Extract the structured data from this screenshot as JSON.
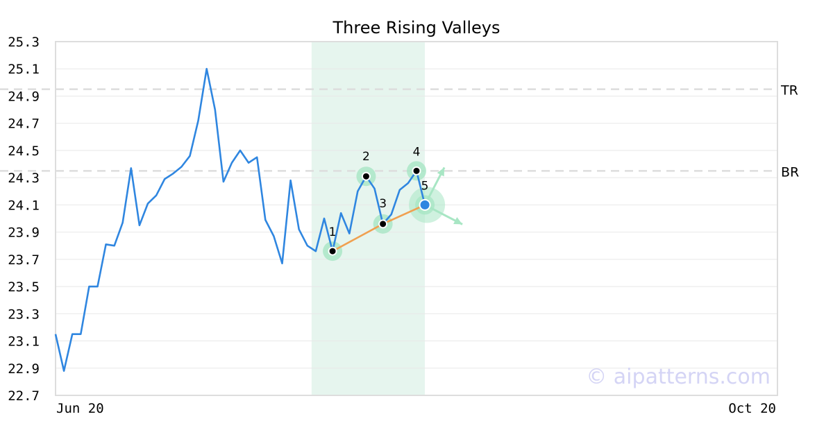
{
  "chart_data": {
    "type": "line",
    "title": "Three Rising Valleys",
    "watermark": "© aipatterns.com",
    "x_axis": {
      "start_label": "Jun 20",
      "end_label": "Oct 20"
    },
    "ylim": [
      22.7,
      25.3
    ],
    "y_ticks": [
      "22.7",
      "22.9",
      "23.1",
      "23.3",
      "23.5",
      "23.7",
      "23.9",
      "24.1",
      "24.3",
      "24.5",
      "24.7",
      "24.9",
      "25.1",
      "25.3"
    ],
    "grid": true,
    "series": [
      {
        "values": [
          23.15,
          22.88,
          23.15,
          23.15,
          23.5,
          23.5,
          23.81,
          23.8,
          23.97,
          24.37,
          23.95,
          24.11,
          24.17,
          24.29,
          24.33,
          24.38,
          24.46,
          24.72,
          25.1,
          24.8,
          24.27,
          24.41,
          24.5,
          24.41,
          24.45,
          23.99,
          23.87,
          23.67,
          24.28,
          23.92,
          23.8,
          23.76,
          24.0,
          23.76,
          24.04,
          23.89,
          24.2,
          24.31,
          24.22,
          23.96,
          24.03,
          24.21,
          24.26,
          24.35,
          24.1
        ]
      }
    ],
    "slots_total": 86,
    "resistance_lines": [
      {
        "label": "TR",
        "value": 24.95
      },
      {
        "label": "BR",
        "value": 24.35
      }
    ],
    "pattern_window": {
      "start_index": 31,
      "end_index": 44
    },
    "pattern_points": [
      {
        "label": "1",
        "index": 33,
        "value": 23.76
      },
      {
        "label": "2",
        "index": 37,
        "value": 24.31
      },
      {
        "label": "3",
        "index": 39,
        "value": 23.96
      },
      {
        "label": "4",
        "index": 43,
        "value": 24.35
      },
      {
        "label": "5",
        "index": 44,
        "value": 24.1
      }
    ],
    "colors": {
      "line": "#2f86e0",
      "trend": "#f0a050",
      "highlight": "#e6f5ee",
      "marker_halo": "#a8e6c4",
      "arrow": "#a8e6c4",
      "grid": "#e8e8e8",
      "dashed": "#dddddd",
      "watermark": "#d4d4f5",
      "axes": "#dddddd"
    }
  }
}
